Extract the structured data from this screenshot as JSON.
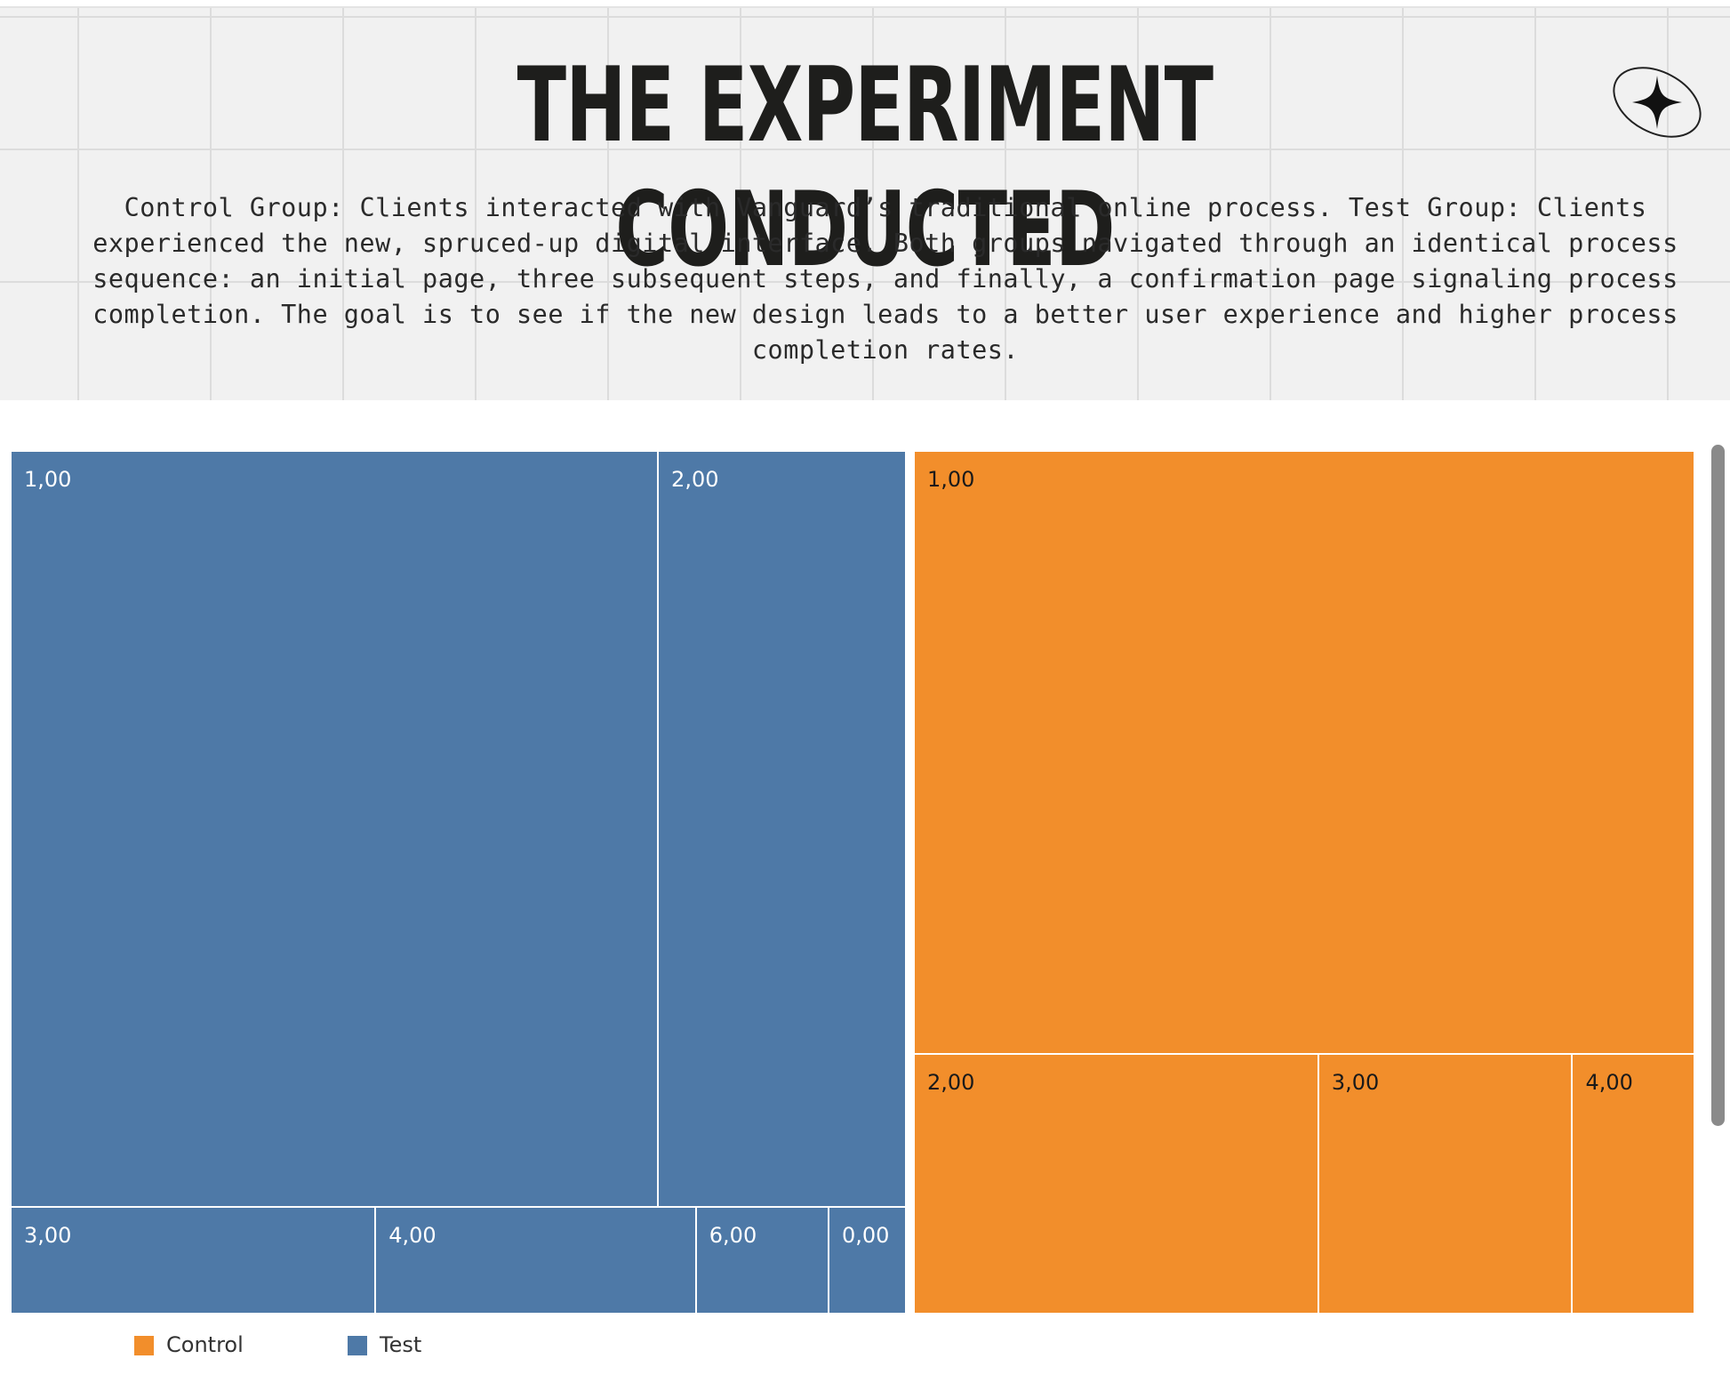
{
  "header": {
    "title": "THE EXPERIMENT CONDUCTED",
    "description": "Control Group: Clients interacted with Vanguard’s traditional online process. Test Group: Clients experienced the new, spruced-up digital interface. Both groups navigated through an identical process sequence: an initial page, three subsequent steps, and finally, a confirmation page signaling process completion. The goal is to see if the new design leads to a better user experience and higher process completion rates.",
    "icon": "sparkle-icon"
  },
  "colors": {
    "control": "#f28e2b",
    "test": "#4e79a7",
    "control_label": "#1a1a1a",
    "test_label": "#ffffff"
  },
  "chart_data": {
    "type": "treemap",
    "groups": [
      {
        "name": "Test",
        "tiles": [
          {
            "label": "1,00",
            "value": 41.5
          },
          {
            "label": "2,00",
            "value": 15.9
          },
          {
            "label": "3,00",
            "value": 3.3
          },
          {
            "label": "4,00",
            "value": 2.9
          },
          {
            "label": "6,00",
            "value": 1.2
          },
          {
            "label": "0,00",
            "value": 0.7
          }
        ]
      },
      {
        "name": "Control",
        "tiles": [
          {
            "label": "1,00",
            "value": 38.6
          },
          {
            "label": "2,00",
            "value": 8.6
          },
          {
            "label": "3,00",
            "value": 5.4
          },
          {
            "label": "4,00",
            "value": 2.6
          }
        ]
      }
    ],
    "legend": [
      {
        "name": "Control",
        "color": "#f28e2b"
      },
      {
        "name": "Test",
        "color": "#4e79a7"
      }
    ],
    "legend_position": "bottom-left"
  }
}
